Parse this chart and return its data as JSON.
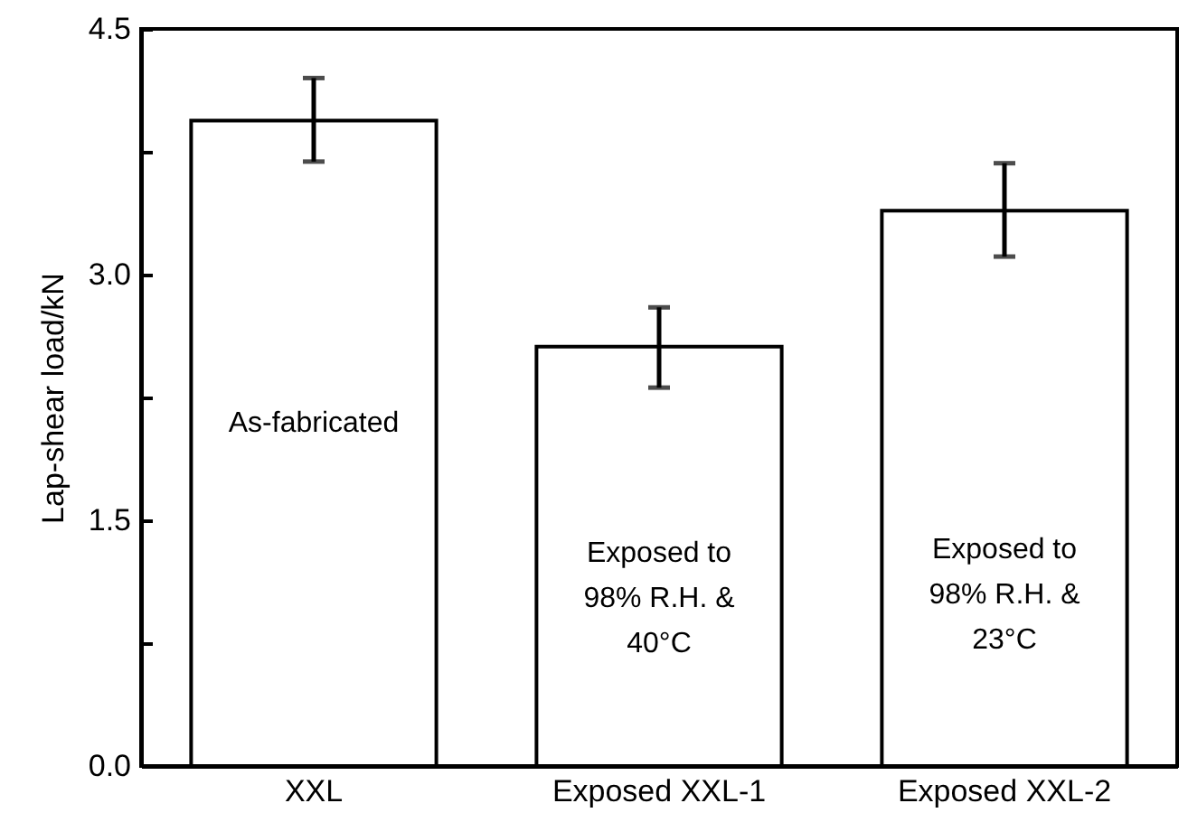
{
  "chart_data": {
    "type": "bar",
    "ylabel": "Lap-shear load/kN",
    "categories": [
      "XXL",
      "Exposed XXL-1",
      "Exposed XXL-2"
    ],
    "values": [
      3.94,
      2.56,
      3.39
    ],
    "errors": [
      [
        3.69,
        4.2
      ],
      [
        2.31,
        2.8
      ],
      [
        3.11,
        3.68
      ]
    ],
    "color": "#ffffff",
    "ylim": [
      0,
      4.5
    ],
    "yticks": [
      {
        "value": 0,
        "label": "0.0"
      },
      {
        "value": 0.75,
        "label": null
      },
      {
        "value": 1.5,
        "label": "1.5"
      },
      {
        "value": 2.25,
        "label": null
      },
      {
        "value": 3,
        "label": "3.0"
      },
      {
        "value": 3.75,
        "label": null
      },
      {
        "value": 4.5,
        "label": "4.5"
      }
    ],
    "annotations": [
      "As-fabricated",
      "Exposed to\n98% R.H. &\n40°C",
      "Exposed to\n98% R.H. &\n23°C"
    ],
    "grid": false
  }
}
